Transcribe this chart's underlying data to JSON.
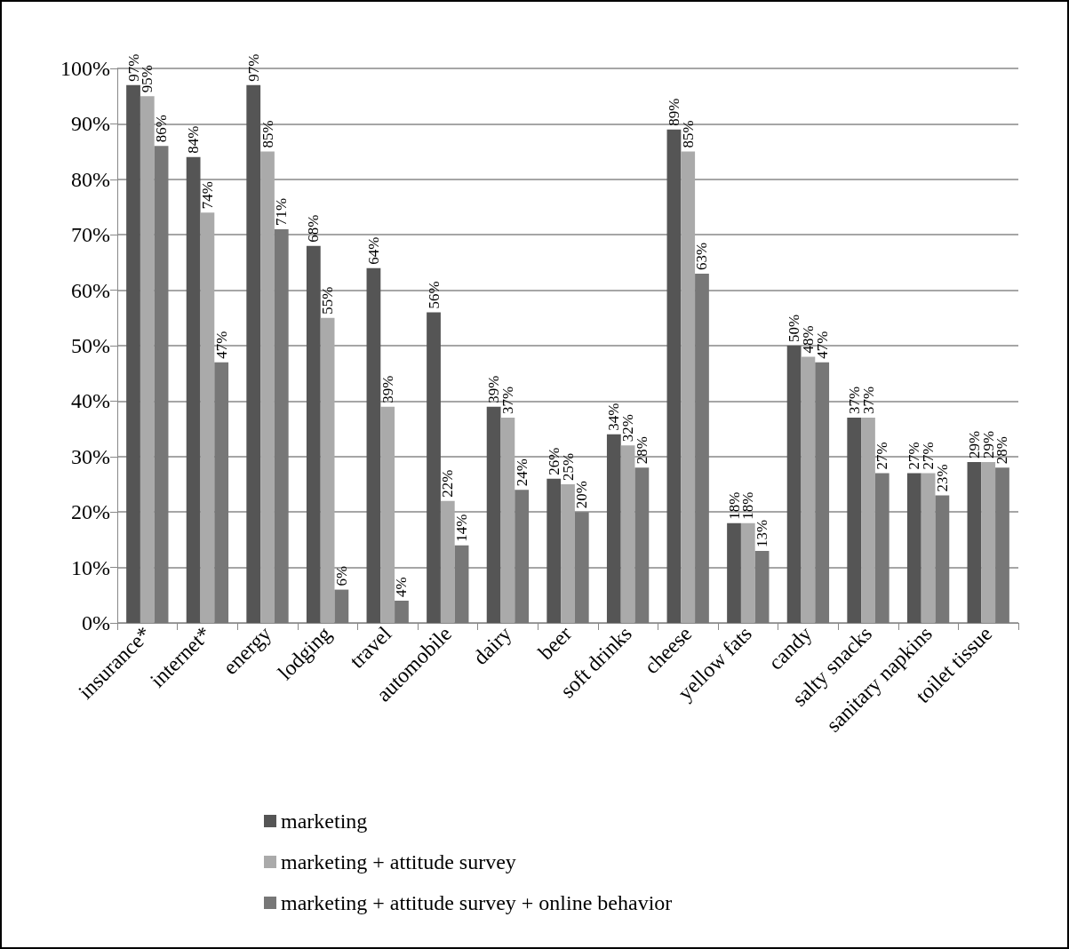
{
  "chart_data": {
    "type": "bar",
    "categories": [
      "insurance*",
      "internet*",
      "energy",
      "lodging",
      "travel",
      "automobile",
      "dairy",
      "beer",
      "soft drinks",
      "cheese",
      "yellow fats",
      "candy",
      "salty snacks",
      "sanitary napkins",
      "toilet tissue"
    ],
    "series": [
      {
        "name": "marketing",
        "color": "#555555",
        "values": [
          97,
          84,
          97,
          68,
          64,
          56,
          39,
          26,
          34,
          89,
          18,
          50,
          37,
          27,
          29
        ],
        "value_labels": [
          "97%",
          "84%",
          "97%",
          "68%",
          "64%",
          "56%",
          "39%",
          "26%",
          "34%",
          "89%",
          "18%",
          "50%",
          "37%",
          "27%",
          "29%"
        ]
      },
      {
        "name": "marketing + attitude survey",
        "color": "#aaaaaa",
        "values": [
          95,
          74,
          85,
          55,
          39,
          22,
          37,
          25,
          32,
          85,
          18,
          48,
          37,
          27,
          29
        ],
        "value_labels": [
          "95%",
          "74%",
          "85%",
          "55%",
          "39%",
          "22%",
          "37%",
          "25%",
          "32%",
          "85%",
          "18%",
          "48%",
          "37%",
          "27%",
          "29%"
        ]
      },
      {
        "name": "marketing + attitude survey + online behavior",
        "color": "#777777",
        "values": [
          86,
          47,
          71,
          6,
          4,
          14,
          24,
          20,
          28,
          63,
          13,
          47,
          27,
          23,
          28
        ],
        "value_labels": [
          "86%",
          "47%",
          "71%",
          "6%",
          "4%",
          "14%",
          "24%",
          "20%",
          "28%",
          "63%",
          "13%",
          "47%",
          "27%",
          "23%",
          "28%"
        ]
      }
    ],
    "ylim": [
      0,
      100
    ],
    "yticks": [
      {
        "value": 0,
        "label": "0%"
      },
      {
        "value": 10,
        "label": "10%"
      },
      {
        "value": 20,
        "label": "20%"
      },
      {
        "value": 30,
        "label": "30%"
      },
      {
        "value": 40,
        "label": "40%"
      },
      {
        "value": 50,
        "label": "50%"
      },
      {
        "value": 60,
        "label": "60%"
      },
      {
        "value": 70,
        "label": "70%"
      },
      {
        "value": 80,
        "label": "80%"
      },
      {
        "value": 90,
        "label": "90%"
      },
      {
        "value": 100,
        "label": "100%"
      }
    ],
    "grid": "y",
    "legend": "bottom"
  }
}
